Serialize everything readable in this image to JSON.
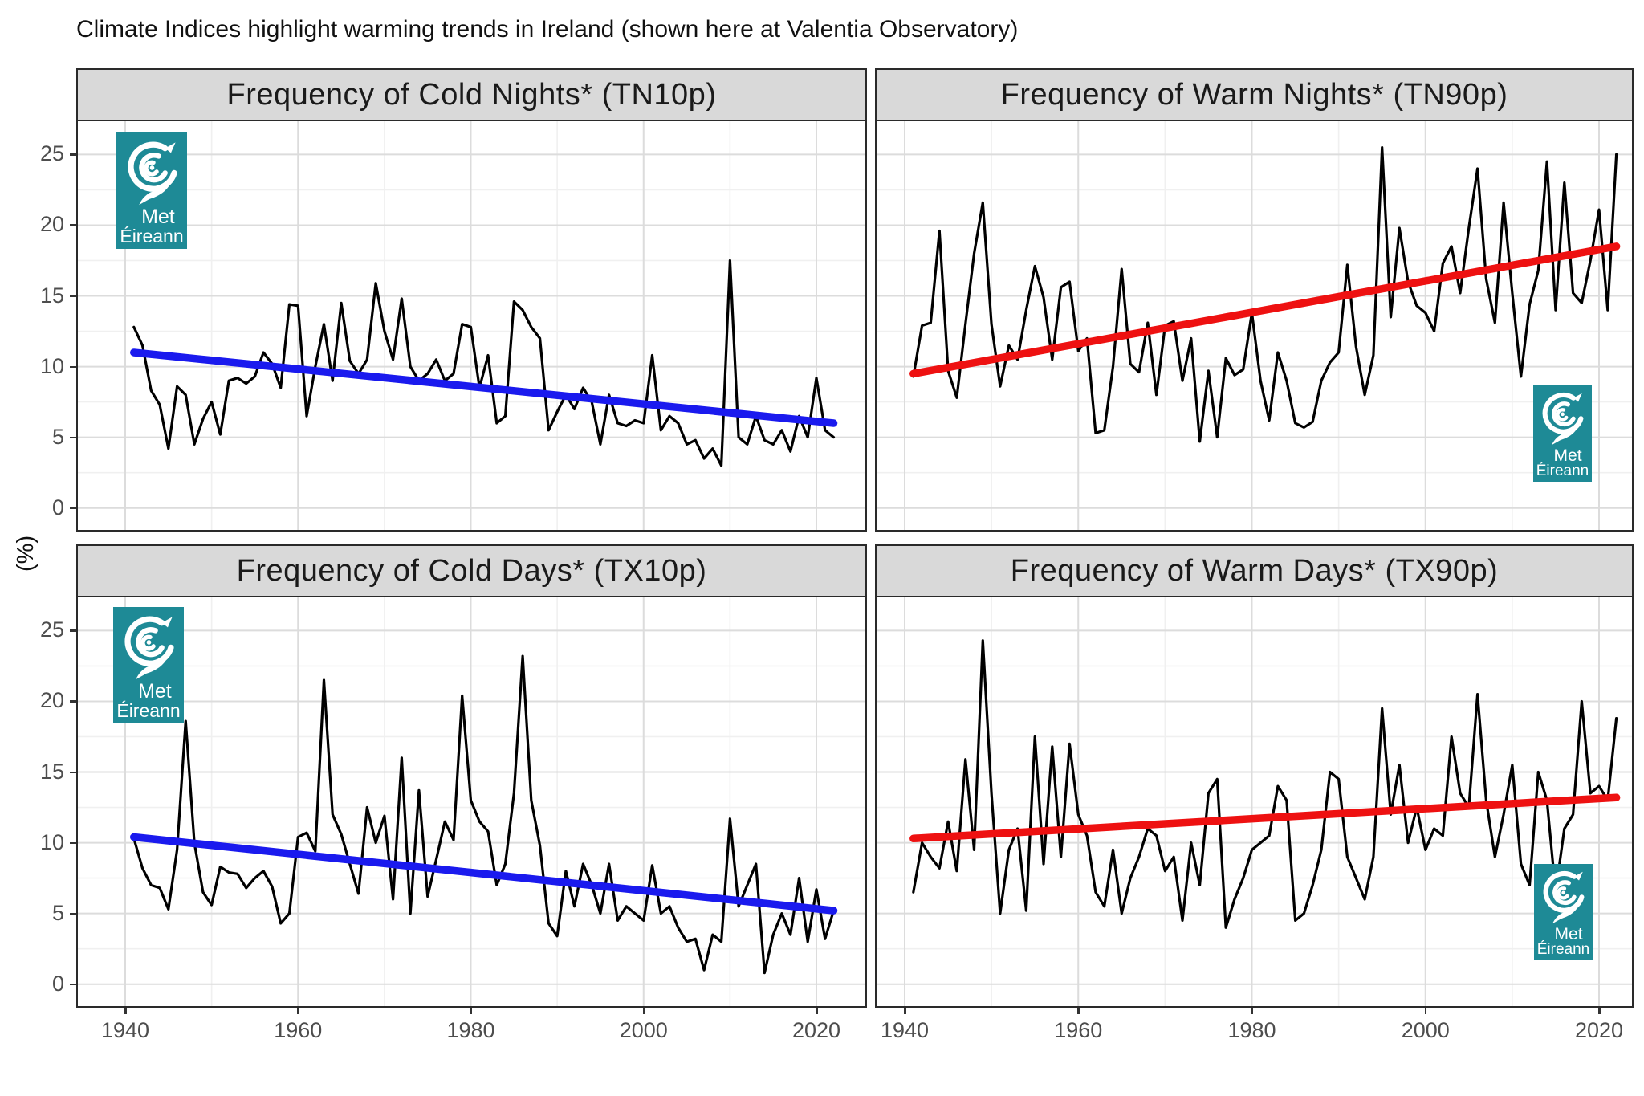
{
  "figure": {
    "title": "Climate Indices highlight warming trends in Ireland (shown here at Valentia Observatory)",
    "y_axis_label": "(%)"
  },
  "logo": {
    "line1": "Met",
    "line2": "Éireann",
    "background_color": "#1e8a96",
    "icon": "hurricane-swirl"
  },
  "axes": {
    "x_tick_labels": [
      "1940",
      "1960",
      "1980",
      "2000",
      "2020"
    ],
    "y_tick_labels": [
      "0",
      "5",
      "10",
      "15",
      "20",
      "25"
    ]
  },
  "chart_data": [
    {
      "type": "line",
      "title": "Frequency of Cold Nights* (TN10p)",
      "xlabel": "",
      "ylabel": "(%)",
      "x_years_start": 1941,
      "x_years_end": 2022,
      "x_ticks": [
        1940,
        1960,
        1980,
        2000,
        2020
      ],
      "y_ticks": [
        0,
        5,
        10,
        15,
        20,
        25
      ],
      "ylim": [
        -1.5,
        27.4
      ],
      "grid": "major+minor gray on white",
      "legend": "none",
      "logo_position": "top-left",
      "series": [
        {
          "name": "annual cold-night frequency",
          "color": "#000000",
          "values": [
            12.8,
            11.5,
            8.3,
            7.3,
            4.2,
            8.6,
            8.0,
            4.5,
            6.3,
            7.5,
            5.2,
            9.0,
            9.2,
            8.8,
            9.3,
            11.0,
            10.2,
            8.5,
            14.4,
            14.3,
            6.5,
            10.0,
            13.0,
            9.0,
            14.5,
            10.4,
            9.5,
            10.5,
            15.9,
            12.5,
            10.5,
            14.8,
            10.0,
            9.0,
            9.5,
            10.5,
            9.0,
            9.5,
            13.0,
            12.8,
            8.5,
            10.8,
            6.0,
            6.5,
            14.6,
            14.0,
            12.8,
            12.0,
            5.5,
            6.8,
            8.0,
            7.0,
            8.5,
            7.5,
            4.5,
            8.0,
            6.0,
            5.8,
            6.2,
            6.0,
            10.8,
            5.5,
            6.5,
            6.0,
            4.5,
            4.8,
            3.5,
            4.2,
            3.0,
            17.5,
            5.0,
            4.5,
            6.5,
            4.8,
            4.5,
            5.5,
            4.0,
            6.5,
            5.0,
            9.2,
            5.5,
            5.0
          ]
        }
      ],
      "trend": {
        "name": "linear trend",
        "color": "#1a1aee",
        "start_value": 11.0,
        "end_value": 6.0
      }
    },
    {
      "type": "line",
      "title": "Frequency of Warm Nights* (TN90p)",
      "xlabel": "",
      "ylabel": "(%)",
      "x_years_start": 1941,
      "x_years_end": 2022,
      "x_ticks": [
        1940,
        1960,
        1980,
        2000,
        2020
      ],
      "y_ticks": [
        0,
        5,
        10,
        15,
        20,
        25
      ],
      "ylim": [
        -1.5,
        27.4
      ],
      "grid": "major+minor gray on white",
      "legend": "none",
      "logo_position": "bottom-right",
      "series": [
        {
          "name": "annual warm-night frequency",
          "color": "#000000",
          "values": [
            9.3,
            12.9,
            13.1,
            19.6,
            9.7,
            7.8,
            13.0,
            18.0,
            21.6,
            13.0,
            8.6,
            11.5,
            10.5,
            14.0,
            17.1,
            14.9,
            10.5,
            15.6,
            16.0,
            11.1,
            12.0,
            5.3,
            5.5,
            10.0,
            16.9,
            10.2,
            9.6,
            13.1,
            8.0,
            12.9,
            13.2,
            9.0,
            12.0,
            4.7,
            9.7,
            5.0,
            10.6,
            9.4,
            9.8,
            13.8,
            9.0,
            6.2,
            11.0,
            9.0,
            6.0,
            5.7,
            6.1,
            9.0,
            10.3,
            11.0,
            17.2,
            11.4,
            8.0,
            10.8,
            25.5,
            13.5,
            19.8,
            16.0,
            14.3,
            13.8,
            12.5,
            17.3,
            18.5,
            15.2,
            19.8,
            24.0,
            16.2,
            13.1,
            21.6,
            15.2,
            9.3,
            14.4,
            16.8,
            24.5,
            14.0,
            23.0,
            15.2,
            14.5,
            17.5,
            21.1,
            14.0,
            25.0
          ]
        }
      ],
      "trend": {
        "name": "linear trend",
        "color": "#ee1111",
        "start_value": 9.5,
        "end_value": 18.5
      }
    },
    {
      "type": "line",
      "title": "Frequency of Cold Days* (TX10p)",
      "xlabel": "",
      "ylabel": "(%)",
      "x_years_start": 1941,
      "x_years_end": 2022,
      "x_ticks": [
        1940,
        1960,
        1980,
        2000,
        2020
      ],
      "y_ticks": [
        0,
        5,
        10,
        15,
        20,
        25
      ],
      "ylim": [
        -1.5,
        27.4
      ],
      "grid": "major+minor gray on white",
      "legend": "none",
      "logo_position": "top-left",
      "series": [
        {
          "name": "annual cold-day frequency",
          "color": "#000000",
          "values": [
            10.3,
            8.2,
            7.0,
            6.8,
            5.3,
            9.5,
            18.6,
            10.0,
            6.5,
            5.6,
            8.3,
            7.9,
            7.8,
            6.8,
            7.5,
            8.0,
            6.9,
            4.3,
            5.0,
            10.4,
            10.7,
            9.4,
            21.5,
            12.0,
            10.6,
            8.5,
            6.4,
            12.5,
            10.0,
            11.9,
            6.0,
            16.0,
            5.0,
            13.7,
            6.2,
            8.8,
            11.5,
            10.2,
            20.4,
            13.0,
            11.5,
            10.8,
            7.0,
            8.5,
            13.5,
            23.2,
            13.0,
            9.8,
            4.3,
            3.4,
            8.0,
            5.5,
            8.5,
            7.0,
            5.0,
            8.5,
            4.5,
            5.5,
            5.0,
            4.5,
            8.4,
            5.0,
            5.5,
            4.0,
            3.0,
            3.2,
            1.0,
            3.5,
            3.0,
            11.7,
            5.5,
            7.0,
            8.5,
            0.8,
            3.5,
            5.0,
            3.5,
            7.5,
            3.0,
            6.7,
            3.2,
            5.2
          ]
        }
      ],
      "trend": {
        "name": "linear trend",
        "color": "#1a1aee",
        "start_value": 10.4,
        "end_value": 5.2
      }
    },
    {
      "type": "line",
      "title": "Frequency of Warm Days* (TX90p)",
      "xlabel": "",
      "ylabel": "(%)",
      "x_years_start": 1941,
      "x_years_end": 2022,
      "x_ticks": [
        1940,
        1960,
        1980,
        2000,
        2020
      ],
      "y_ticks": [
        0,
        5,
        10,
        15,
        20,
        25
      ],
      "ylim": [
        -1.5,
        27.4
      ],
      "grid": "major+minor gray on white",
      "legend": "none",
      "logo_position": "bottom-right",
      "series": [
        {
          "name": "annual warm-day frequency",
          "color": "#000000",
          "values": [
            6.5,
            10.0,
            9.0,
            8.2,
            11.5,
            8.0,
            15.9,
            9.5,
            24.3,
            13.5,
            5.0,
            9.5,
            11.0,
            5.2,
            17.5,
            8.5,
            16.8,
            9.0,
            17.0,
            12.0,
            10.5,
            6.5,
            5.5,
            9.5,
            5.0,
            7.5,
            9.0,
            11.0,
            10.5,
            8.0,
            9.0,
            4.5,
            10.0,
            7.0,
            13.5,
            14.5,
            4.0,
            6.0,
            7.5,
            9.5,
            10.0,
            10.5,
            14.0,
            13.0,
            4.5,
            5.0,
            7.0,
            9.5,
            15.0,
            14.5,
            9.0,
            7.5,
            6.0,
            9.0,
            19.5,
            12.0,
            15.5,
            10.0,
            12.5,
            9.5,
            11.0,
            10.5,
            17.5,
            13.5,
            12.5,
            20.5,
            13.0,
            9.0,
            12.0,
            15.5,
            8.5,
            7.0,
            15.0,
            13.0,
            6.5,
            11.0,
            12.0,
            20.0,
            13.5,
            14.0,
            13.0,
            18.8
          ]
        }
      ],
      "trend": {
        "name": "linear trend",
        "color": "#ee1111",
        "start_value": 10.3,
        "end_value": 13.2
      }
    }
  ]
}
